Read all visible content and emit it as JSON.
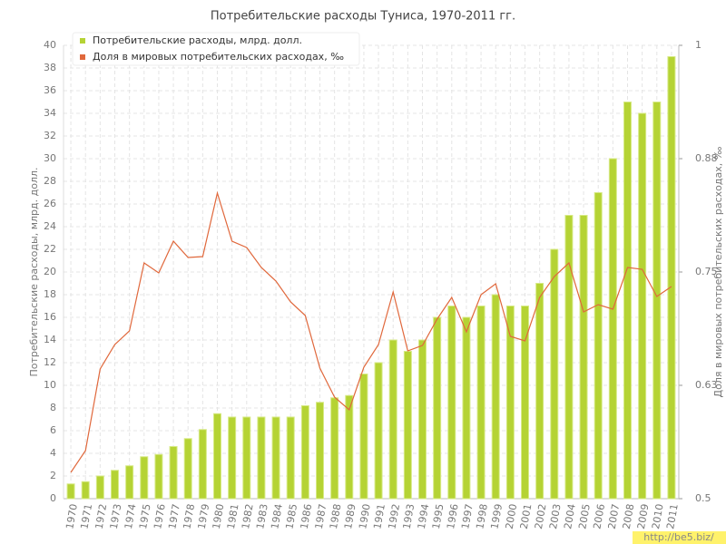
{
  "chart_data": {
    "type": "bar",
    "title": "Потребительские расходы Туниса, 1970-2011 гг.",
    "y_label": "Потребительские расходы, млрд. долл.",
    "y2_label": "Доля в мировых потребительских расходах, ‰",
    "watermark": "http://be5.biz/",
    "categories": [
      "1970",
      "1971",
      "1972",
      "1973",
      "1974",
      "1975",
      "1976",
      "1977",
      "1978",
      "1979",
      "1980",
      "1981",
      "1982",
      "1983",
      "1984",
      "1985",
      "1986",
      "1987",
      "1988",
      "1989",
      "1990",
      "1991",
      "1992",
      "1993",
      "1994",
      "1995",
      "1996",
      "1997",
      "1998",
      "1999",
      "2000",
      "2001",
      "2002",
      "2003",
      "2004",
      "2005",
      "2006",
      "2007",
      "2008",
      "2009",
      "2010",
      "2011"
    ],
    "series": [
      {
        "name": "Потребительские расходы, млрд. долл.",
        "type": "bar",
        "color": "#b5d334",
        "values": [
          1.3,
          1.5,
          2.0,
          2.5,
          2.9,
          3.7,
          3.9,
          4.6,
          5.3,
          6.1,
          7.5,
          7.2,
          7.2,
          7.2,
          7.2,
          7.2,
          8.2,
          8.5,
          8.9,
          9.1,
          11,
          12,
          14,
          13,
          14,
          16,
          17,
          16,
          17,
          18,
          17,
          17,
          19,
          22,
          25,
          25,
          27,
          30,
          35,
          34,
          35,
          39
        ]
      },
      {
        "name": "Доля в мировых потребительских расходах, ‰",
        "type": "line",
        "axis": "y2",
        "color": "#e0683c",
        "values": [
          0.529,
          0.553,
          0.643,
          0.67,
          0.685,
          0.76,
          0.749,
          0.784,
          0.766,
          0.767,
          0.837,
          0.784,
          0.777,
          0.755,
          0.74,
          0.717,
          0.702,
          0.644,
          0.612,
          0.598,
          0.645,
          0.67,
          0.728,
          0.663,
          0.669,
          0.698,
          0.722,
          0.684,
          0.725,
          0.737,
          0.679,
          0.674,
          0.722,
          0.745,
          0.76,
          0.706,
          0.714,
          0.709,
          0.755,
          0.753,
          0.723,
          0.734
        ]
      }
    ],
    "ylim": [
      0,
      40
    ],
    "yticks": [
      0,
      2,
      4,
      6,
      8,
      10,
      12,
      14,
      16,
      18,
      20,
      22,
      24,
      26,
      28,
      30,
      32,
      34,
      36,
      38,
      40
    ],
    "y2lim": [
      0.5,
      1
    ],
    "y2ticks": [
      0.5,
      {
        "value": 0.625,
        "label": "0.63"
      },
      0.75,
      {
        "value": 0.875,
        "label": "0.88"
      },
      1
    ],
    "grid": true,
    "legend": "top-left"
  }
}
